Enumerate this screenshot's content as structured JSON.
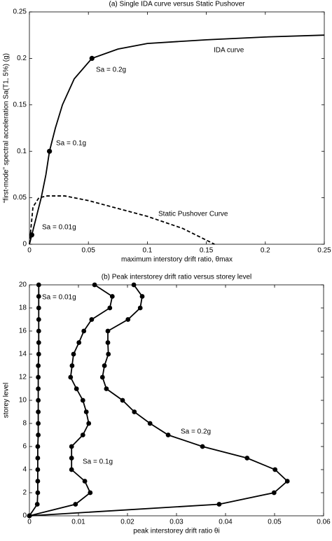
{
  "chart_data": [
    {
      "type": "line",
      "title": "(a) Single IDA curve versus Static Pushover",
      "x_label": "maximum interstory drift ratio, θmax",
      "y_label": "“first-mode” spectral acceleration Sa(T1, 5%) (g)",
      "xlim": [
        0,
        0.25
      ],
      "xticks": [
        0,
        0.05,
        0.1,
        0.15,
        0.2,
        0.25
      ],
      "ylim": [
        0,
        0.25
      ],
      "yticks": [
        0,
        0.05,
        0.1,
        0.15,
        0.2,
        0.25
      ],
      "series": [
        {
          "name": "IDA curve",
          "color": "#000000",
          "dash": false,
          "x": [
            0,
            0.002,
            0.006,
            0.01,
            0.014,
            0.017,
            0.022,
            0.028,
            0.038,
            0.053,
            0.075,
            0.1,
            0.15,
            0.2,
            0.25
          ],
          "values": [
            0,
            0.01,
            0.03,
            0.05,
            0.075,
            0.1,
            0.125,
            0.15,
            0.178,
            0.2,
            0.21,
            0.216,
            0.22,
            0.223,
            0.225
          ]
        },
        {
          "name": "Static Pushover Curve",
          "color": "#000000",
          "dash": true,
          "x": [
            0,
            0.003,
            0.008,
            0.015,
            0.03,
            0.05,
            0.1,
            0.13,
            0.157
          ],
          "values": [
            0,
            0.04,
            0.05,
            0.052,
            0.052,
            0.047,
            0.03,
            0.017,
            0
          ]
        }
      ],
      "points": [
        {
          "x": 0.002,
          "y": 0.01,
          "label": "Sa = 0.01g"
        },
        {
          "x": 0.017,
          "y": 0.1,
          "label": "Sa = 0.1g"
        },
        {
          "x": 0.053,
          "y": 0.2,
          "label": "Sa = 0.2g"
        }
      ]
    },
    {
      "type": "line",
      "title": "(b) Peak interstorey drift ratio versus storey level",
      "x_label": "peak interstorey drift ratio θi",
      "y_label": "storey level",
      "xlim": [
        0,
        0.06
      ],
      "xticks": [
        0,
        0.01,
        0.02,
        0.03,
        0.04,
        0.05,
        0.06
      ],
      "ylim": [
        0,
        20
      ],
      "yticks": [
        0,
        2,
        4,
        6,
        8,
        10,
        12,
        14,
        16,
        18,
        20
      ],
      "y": [
        0,
        1,
        2,
        3,
        4,
        5,
        6,
        7,
        8,
        9,
        10,
        11,
        12,
        13,
        14,
        15,
        16,
        17,
        18,
        19,
        20
      ],
      "series": [
        {
          "name": "Sa = 0.01g",
          "color": "#000000",
          "values": [
            0,
            0.0016,
            0.0017,
            0.0017,
            0.0017,
            0.0017,
            0.0017,
            0.0018,
            0.0018,
            0.0018,
            0.0018,
            0.0018,
            0.0018,
            0.0018,
            0.0019,
            0.0019,
            0.0019,
            0.0019,
            0.0019,
            0.0019,
            0.0019
          ]
        },
        {
          "name": "Sa = 0.1g",
          "color": "#000000",
          "values": [
            0,
            0.0094,
            0.0124,
            0.0113,
            0.0086,
            0.0086,
            0.0086,
            0.0109,
            0.0121,
            0.0116,
            0.0109,
            0.0096,
            0.0084,
            0.0087,
            0.009,
            0.0101,
            0.0111,
            0.0127,
            0.0164,
            0.0169,
            0.0133
          ]
        },
        {
          "name": "Sa = 0.2g",
          "color": "#000000",
          "values": [
            0,
            0.0387,
            0.0499,
            0.0526,
            0.0501,
            0.0444,
            0.0353,
            0.0283,
            0.0246,
            0.0214,
            0.019,
            0.0157,
            0.0149,
            0.0153,
            0.0161,
            0.016,
            0.016,
            0.0201,
            0.0226,
            0.023,
            0.0213
          ]
        }
      ]
    }
  ]
}
